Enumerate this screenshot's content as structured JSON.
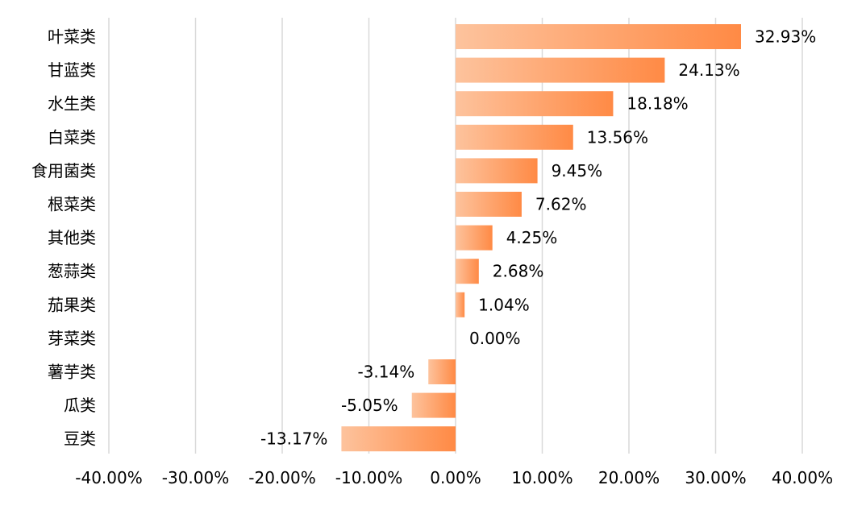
{
  "chart_data": {
    "type": "bar",
    "orientation": "horizontal",
    "categories": [
      "叶菜类",
      "甘蓝类",
      "水生类",
      "白菜类",
      "食用菌类",
      "根菜类",
      "其他类",
      "葱蒜类",
      "茄果类",
      "芽菜类",
      "薯芋类",
      "瓜类",
      "豆类"
    ],
    "values": [
      32.93,
      24.13,
      18.18,
      13.56,
      9.45,
      7.62,
      4.25,
      2.68,
      1.04,
      0.0,
      -3.14,
      -5.05,
      -13.17
    ],
    "value_labels": [
      "32.93%",
      "24.13%",
      "18.18%",
      "13.56%",
      "9.45%",
      "7.62%",
      "4.25%",
      "2.68%",
      "1.04%",
      "0.00%",
      "-3.14%",
      "-5.05%",
      "-13.17%"
    ],
    "x_ticks": [
      "-40.00%",
      "-30.00%",
      "-20.00%",
      "-10.00%",
      "0.00%",
      "10.00%",
      "20.00%",
      "30.00%",
      "40.00%"
    ],
    "xlim": [
      -40,
      40
    ],
    "grid": true,
    "legend": "none",
    "colors": {
      "bar_light": "#fdc39d",
      "bar_dark": "#ff8a45",
      "grid": "#d9d9d9",
      "text": "#000000"
    }
  }
}
